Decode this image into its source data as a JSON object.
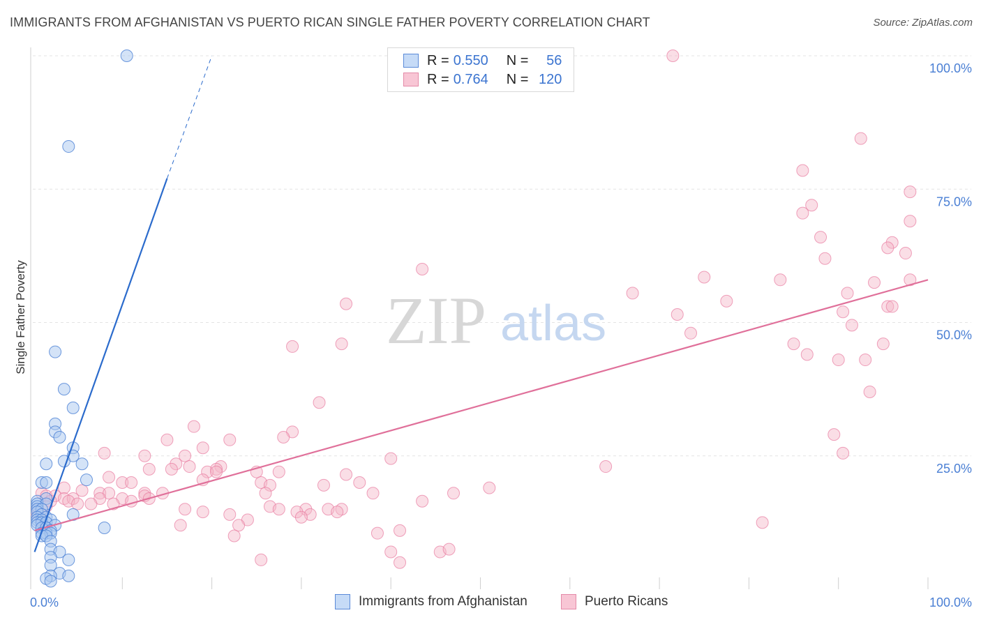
{
  "title": "IMMIGRANTS FROM AFGHANISTAN VS PUERTO RICAN SINGLE FATHER POVERTY CORRELATION CHART",
  "source": "Source: ZipAtlas.com",
  "watermark": {
    "zip": "ZIP",
    "atlas": "atlas"
  },
  "colors": {
    "blue": "#4a7fd4",
    "blue_fill": "#a9c7f0",
    "blue_line": "#2b6bcc",
    "pink": "#e87ba0",
    "pink_fill": "#f4b5c8",
    "pink_line": "#e0709a",
    "grid": "#e3e3e3",
    "axis_label": "#4a7fd4"
  },
  "legend": {
    "series": [
      {
        "r_label": "R =",
        "r_value": "0.550",
        "n_label": "N =",
        "n_value": "56"
      },
      {
        "r_label": "R =",
        "r_value": "0.764",
        "n_label": "N =",
        "n_value": "120"
      }
    ]
  },
  "bottom_legend": [
    "Immigrants from Afghanistan",
    "Puerto Ricans"
  ],
  "chart_data": {
    "type": "scatter",
    "title": "IMMIGRANTS FROM AFGHANISTAN VS PUERTO RICAN SINGLE FATHER POVERTY CORRELATION CHART",
    "xlabel": "",
    "ylabel": "Single Father Poverty",
    "xlim": [
      0,
      100
    ],
    "ylim": [
      0,
      100
    ],
    "x_tick_labels": [
      "0.0%",
      "100.0%"
    ],
    "y_tick_labels": [
      "25.0%",
      "50.0%",
      "75.0%",
      "100.0%"
    ],
    "y_ticks": [
      25,
      50,
      75,
      100
    ],
    "grid": true,
    "legend_position": "top-center",
    "series": [
      {
        "name": "Immigrants from Afghanistan",
        "r": 0.55,
        "n": 56,
        "trend": {
          "x": [
            0.2,
            15.0
          ],
          "y": [
            7.0,
            77.0
          ],
          "dashed_to": {
            "x": 20.0,
            "y": 100.0
          }
        },
        "points": [
          [
            10.5,
            100
          ],
          [
            4.0,
            83
          ],
          [
            2.5,
            44.5
          ],
          [
            3.5,
            37.5
          ],
          [
            4.5,
            34
          ],
          [
            2.5,
            31
          ],
          [
            2.5,
            29.5
          ],
          [
            3.0,
            28.5
          ],
          [
            4.5,
            26.5
          ],
          [
            4.5,
            25
          ],
          [
            3.5,
            24
          ],
          [
            5.5,
            23.5
          ],
          [
            1.5,
            23.5
          ],
          [
            6.0,
            20.5
          ],
          [
            1.0,
            20
          ],
          [
            1.5,
            20
          ],
          [
            1.5,
            17
          ],
          [
            0.5,
            16.5
          ],
          [
            0.5,
            16
          ],
          [
            1.5,
            16
          ],
          [
            0.5,
            15.5
          ],
          [
            0.5,
            15
          ],
          [
            1.0,
            15
          ],
          [
            0.5,
            14.5
          ],
          [
            1.0,
            14
          ],
          [
            4.5,
            14
          ],
          [
            0.5,
            13.5
          ],
          [
            1.5,
            13.5
          ],
          [
            0.5,
            13
          ],
          [
            1.0,
            13
          ],
          [
            2.0,
            13
          ],
          [
            0.5,
            12.5
          ],
          [
            1.0,
            12.5
          ],
          [
            1.5,
            12.5
          ],
          [
            0.5,
            12
          ],
          [
            2.5,
            12
          ],
          [
            1.0,
            11.5
          ],
          [
            1.5,
            11.5
          ],
          [
            8.0,
            11.5
          ],
          [
            2.0,
            11
          ],
          [
            1.0,
            10.5
          ],
          [
            1.5,
            10.5
          ],
          [
            2.0,
            10.5
          ],
          [
            1.0,
            10
          ],
          [
            1.5,
            10
          ],
          [
            2.0,
            9
          ],
          [
            2.0,
            7.5
          ],
          [
            3.0,
            7
          ],
          [
            2.0,
            6
          ],
          [
            4.0,
            5.5
          ],
          [
            2.0,
            4.5
          ],
          [
            3.0,
            3
          ],
          [
            2.0,
            2.5
          ],
          [
            4.0,
            2.5
          ],
          [
            1.5,
            2
          ],
          [
            2.0,
            1.5
          ]
        ]
      },
      {
        "name": "Puerto Ricans",
        "r": 0.764,
        "n": 120,
        "trend": {
          "x": [
            0.2,
            100.0
          ],
          "y": [
            11.0,
            58.0
          ]
        },
        "points": [
          [
            71.5,
            100
          ],
          [
            92.5,
            84.5
          ],
          [
            86.0,
            78.5
          ],
          [
            98.0,
            74.5
          ],
          [
            87.0,
            72
          ],
          [
            86.0,
            70.5
          ],
          [
            98.0,
            69
          ],
          [
            88.0,
            66
          ],
          [
            96.0,
            65
          ],
          [
            95.5,
            64
          ],
          [
            97.5,
            63
          ],
          [
            88.5,
            62
          ],
          [
            43.5,
            60
          ],
          [
            75.0,
            58.5
          ],
          [
            83.5,
            58
          ],
          [
            98.0,
            58
          ],
          [
            94.0,
            57.5
          ],
          [
            67.0,
            55.5
          ],
          [
            91.0,
            55.5
          ],
          [
            77.5,
            54
          ],
          [
            35.0,
            53.5
          ],
          [
            95.5,
            53
          ],
          [
            96.0,
            53
          ],
          [
            90.5,
            52
          ],
          [
            72.0,
            51.5
          ],
          [
            91.5,
            49.5
          ],
          [
            73.5,
            48
          ],
          [
            34.5,
            46
          ],
          [
            29.0,
            45.5
          ],
          [
            85.0,
            46
          ],
          [
            95.0,
            46
          ],
          [
            86.5,
            44
          ],
          [
            90.0,
            43
          ],
          [
            93.0,
            43
          ],
          [
            93.5,
            37
          ],
          [
            32.0,
            35
          ],
          [
            18.0,
            30.5
          ],
          [
            29.0,
            29.5
          ],
          [
            28.0,
            28.5
          ],
          [
            89.5,
            29
          ],
          [
            15.0,
            28
          ],
          [
            22.0,
            28
          ],
          [
            19.0,
            26.5
          ],
          [
            8.0,
            25.5
          ],
          [
            90.5,
            25.5
          ],
          [
            12.5,
            25
          ],
          [
            17.0,
            25
          ],
          [
            40.0,
            24.5
          ],
          [
            16.0,
            23.5
          ],
          [
            17.5,
            23
          ],
          [
            21.0,
            23
          ],
          [
            15.5,
            22.5
          ],
          [
            13.0,
            22.5
          ],
          [
            64.0,
            23
          ],
          [
            20.5,
            22.5
          ],
          [
            19.5,
            22
          ],
          [
            20.5,
            22
          ],
          [
            25.0,
            22
          ],
          [
            27.5,
            22
          ],
          [
            35.0,
            21.5
          ],
          [
            8.5,
            21
          ],
          [
            10.0,
            20
          ],
          [
            11.0,
            20
          ],
          [
            19.0,
            20.5
          ],
          [
            25.5,
            20
          ],
          [
            26.5,
            19.5
          ],
          [
            32.5,
            19.5
          ],
          [
            36.5,
            20
          ],
          [
            51.0,
            19
          ],
          [
            3.5,
            19
          ],
          [
            5.5,
            18.5
          ],
          [
            7.5,
            18
          ],
          [
            8.5,
            18
          ],
          [
            12.5,
            18
          ],
          [
            14.5,
            18
          ],
          [
            26.0,
            18
          ],
          [
            38.0,
            18
          ],
          [
            47.0,
            18
          ],
          [
            1.0,
            18
          ],
          [
            1.5,
            17.5
          ],
          [
            2.5,
            17.5
          ],
          [
            3.5,
            17
          ],
          [
            4.5,
            17
          ],
          [
            7.5,
            17
          ],
          [
            10.0,
            17
          ],
          [
            12.5,
            17.5
          ],
          [
            13.0,
            17
          ],
          [
            4.0,
            16.5
          ],
          [
            2.0,
            16.5
          ],
          [
            5.0,
            16
          ],
          [
            6.5,
            16
          ],
          [
            9.0,
            16
          ],
          [
            11.0,
            16.5
          ],
          [
            43.5,
            16.5
          ],
          [
            26.5,
            15.5
          ],
          [
            27.5,
            15
          ],
          [
            30.5,
            15
          ],
          [
            29.5,
            14.5
          ],
          [
            33.0,
            15
          ],
          [
            34.5,
            15
          ],
          [
            34.0,
            14.5
          ],
          [
            0.5,
            15
          ],
          [
            1.5,
            15.5
          ],
          [
            31.0,
            14
          ],
          [
            0.5,
            14
          ],
          [
            1.0,
            14
          ],
          [
            17.0,
            15
          ],
          [
            22.0,
            14
          ],
          [
            19.0,
            14.5
          ],
          [
            30.0,
            13.5
          ],
          [
            24.0,
            13
          ],
          [
            16.5,
            12
          ],
          [
            23.0,
            12
          ],
          [
            81.5,
            12.5
          ],
          [
            41.0,
            11
          ],
          [
            38.5,
            10.5
          ],
          [
            22.5,
            10
          ],
          [
            40.0,
            7
          ],
          [
            45.5,
            7
          ],
          [
            46.5,
            7.5
          ],
          [
            25.5,
            5.5
          ],
          [
            41.0,
            5
          ]
        ]
      }
    ]
  }
}
